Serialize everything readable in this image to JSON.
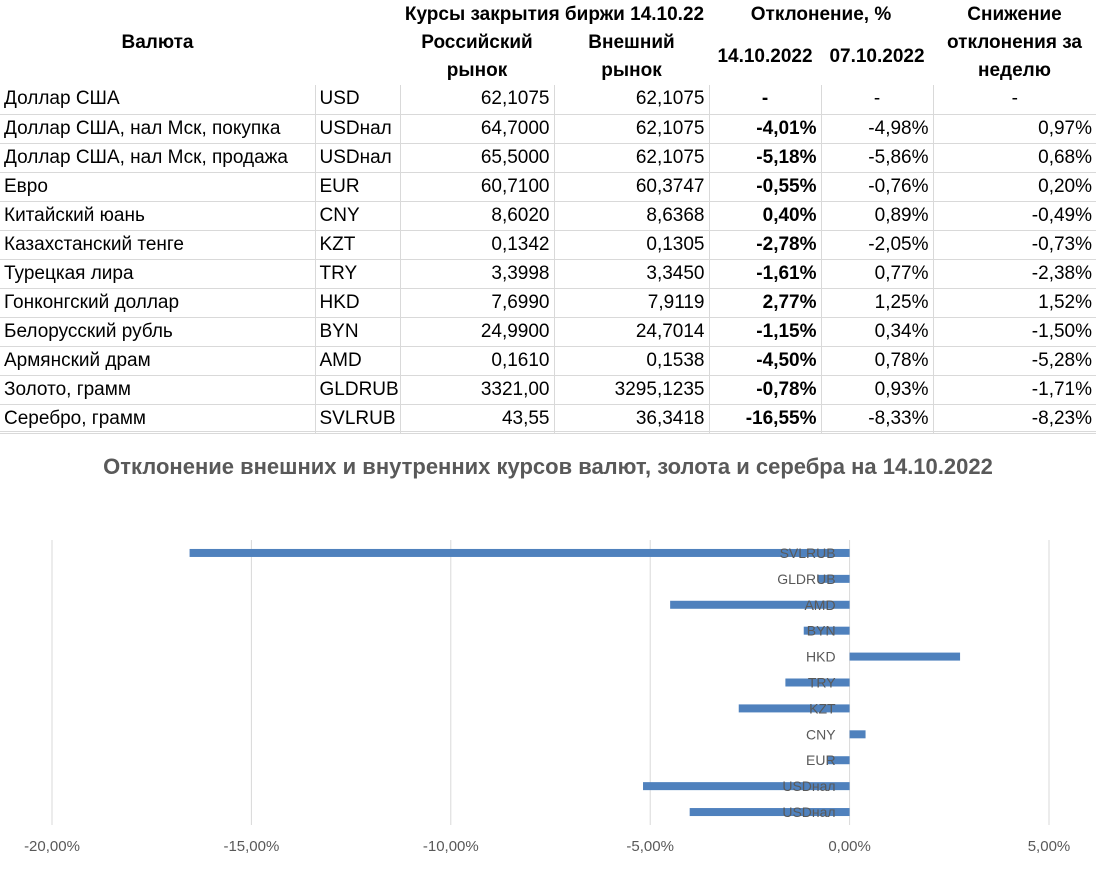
{
  "table": {
    "header": {
      "currency": "Валюта",
      "close_rates": "Курсы закрытия биржи 14.10.22",
      "ru_market_l1": "Российский",
      "ru_market_l2": "рынок",
      "ext_market_l1": "Внешний",
      "ext_market_l2": "рынок",
      "deviation": "Отклонение, %",
      "date1": "14.10.2022",
      "date2": "07.10.2022",
      "decrease_l1": "Снижение",
      "decrease_l2": "отклонения за",
      "decrease_l3": "неделю"
    },
    "rows": [
      {
        "name": "Доллар США",
        "code": "USD",
        "ru": "62,1075",
        "ext": "62,1075",
        "dev1": "-",
        "dev2": "-",
        "delta": "-"
      },
      {
        "name": "Доллар США, нал Мск, покупка",
        "code": "USDнал",
        "ru": "64,7000",
        "ext": "62,1075",
        "dev1": "-4,01%",
        "dev2": "-4,98%",
        "delta": "0,97%"
      },
      {
        "name": "Доллар США, нал Мск, продажа",
        "code": "USDнал",
        "ru": "65,5000",
        "ext": "62,1075",
        "dev1": "-5,18%",
        "dev2": "-5,86%",
        "delta": "0,68%"
      },
      {
        "name": "Евро",
        "code": "EUR",
        "ru": "60,7100",
        "ext": "60,3747",
        "dev1": "-0,55%",
        "dev2": "-0,76%",
        "delta": "0,20%"
      },
      {
        "name": "Китайский юань",
        "code": "CNY",
        "ru": "8,6020",
        "ext": "8,6368",
        "dev1": "0,40%",
        "dev2": "0,89%",
        "delta": "-0,49%"
      },
      {
        "name": "Казахстанский тенге",
        "code": "KZT",
        "ru": "0,1342",
        "ext": "0,1305",
        "dev1": "-2,78%",
        "dev2": "-2,05%",
        "delta": "-0,73%"
      },
      {
        "name": "Турецкая лира",
        "code": "TRY",
        "ru": "3,3998",
        "ext": "3,3450",
        "dev1": "-1,61%",
        "dev2": "0,77%",
        "delta": "-2,38%"
      },
      {
        "name": "Гонконгский доллар",
        "code": "HKD",
        "ru": "7,6990",
        "ext": "7,9119",
        "dev1": "2,77%",
        "dev2": "1,25%",
        "delta": "1,52%"
      },
      {
        "name": "Белорусский рубль",
        "code": "BYN",
        "ru": "24,9900",
        "ext": "24,7014",
        "dev1": "-1,15%",
        "dev2": "0,34%",
        "delta": "-1,50%"
      },
      {
        "name": "Армянский драм",
        "code": "AMD",
        "ru": "0,1610",
        "ext": "0,1538",
        "dev1": "-4,50%",
        "dev2": "0,78%",
        "delta": "-5,28%"
      },
      {
        "name": "Золото, грамм",
        "code": "GLDRUB",
        "ru": "3321,00",
        "ext": "3295,1235",
        "dev1": "-0,78%",
        "dev2": "0,93%",
        "delta": "-1,71%"
      },
      {
        "name": "Серебро, грамм",
        "code": "SVLRUB",
        "ru": "43,55",
        "ext": "36,3418",
        "dev1": "-16,55%",
        "dev2": "-8,33%",
        "delta": "-8,23%"
      }
    ]
  },
  "chart_data": {
    "type": "bar",
    "orientation": "horizontal",
    "title": "Отклонение внешних и внутренних курсов валют, золота и серебра на 14.10.2022",
    "categories": [
      "USDнал",
      "USDнал",
      "EUR",
      "CNY",
      "KZT",
      "TRY",
      "HKD",
      "BYN",
      "AMD",
      "GLDRUB",
      "SVLRUB"
    ],
    "values": [
      -4.01,
      -5.18,
      -0.55,
      0.4,
      -2.78,
      -1.61,
      2.77,
      -1.15,
      -4.5,
      -0.78,
      -16.55
    ],
    "xlim": [
      -20,
      5
    ],
    "xticks": [
      -20,
      -15,
      -10,
      -5,
      0,
      5
    ],
    "xtick_labels": [
      "-20,00%",
      "-15,00%",
      "-10,00%",
      "-5,00%",
      "0,00%",
      "5,00%"
    ],
    "grid": "vertical",
    "bar_color": "#4f81bd",
    "xlabel": "",
    "ylabel": ""
  }
}
